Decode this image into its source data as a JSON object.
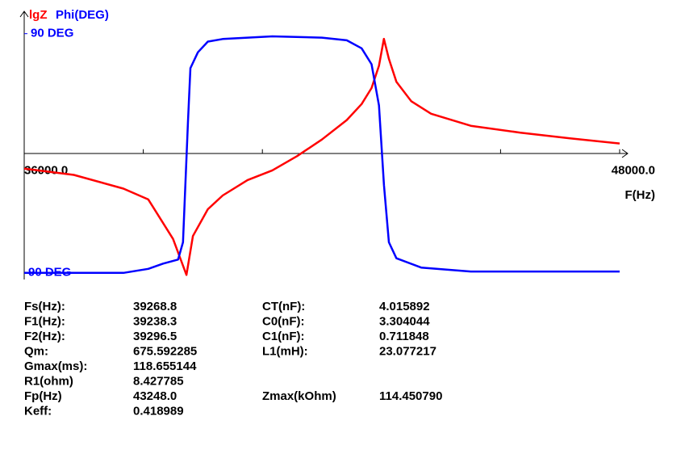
{
  "chart_data": {
    "type": "line",
    "x_label": "F(Hz)",
    "xlim": [
      36000,
      48000
    ],
    "xticks": [
      {
        "value": 36000,
        "label": "36000.0"
      },
      {
        "value": 38400,
        "label": null
      },
      {
        "value": 40800,
        "label": null
      },
      {
        "value": 43200,
        "label": null
      },
      {
        "value": 45600,
        "label": null
      },
      {
        "value": 48000,
        "label": "48000.0"
      }
    ],
    "ylim": [
      -95,
      105
    ],
    "yticks": [
      {
        "value": 90,
        "label": "90 DEG"
      },
      {
        "value": -90,
        "label": "-90 DEG"
      }
    ],
    "y2lim": [
      0.85,
      5.5
    ],
    "grid": false,
    "series": [
      {
        "name": "lgZ",
        "color": "#ff0000",
        "axis": "y2",
        "x": [
          36000,
          37000,
          38000,
          38500,
          39000,
          39150,
          39270,
          39400,
          39700,
          40000,
          40500,
          41000,
          41500,
          42000,
          42500,
          42800,
          43000,
          43150,
          43248,
          43350,
          43500,
          43800,
          44200,
          45000,
          46000,
          47000,
          48000
        ],
        "values": [
          2.79,
          2.68,
          2.44,
          2.25,
          1.56,
          1.21,
          0.93,
          1.61,
          2.08,
          2.32,
          2.59,
          2.76,
          3.01,
          3.3,
          3.64,
          3.92,
          4.2,
          4.59,
          5.06,
          4.71,
          4.31,
          3.97,
          3.75,
          3.54,
          3.42,
          3.32,
          3.23
        ]
      },
      {
        "name": "Phi(DEG)",
        "color": "#0000ff",
        "x": [
          36000,
          38000,
          38500,
          38800,
          39100,
          39200,
          39300,
          39350,
          39500,
          39700,
          40000,
          41000,
          42000,
          42500,
          42800,
          43000,
          43150,
          43250,
          43350,
          43500,
          44000,
          45000,
          48000
        ],
        "values": [
          -90,
          -90,
          -87,
          -83,
          -80,
          -67,
          24,
          64,
          76,
          84,
          86,
          88,
          87,
          85,
          79,
          67,
          36,
          -24,
          -67,
          -79,
          -86,
          -89,
          -89
        ]
      }
    ]
  },
  "table": {
    "rows": [
      [
        "Fs(Hz):",
        "39268.8",
        "CT(nF):",
        "4.015892"
      ],
      [
        "F1(Hz):",
        "39238.3",
        "C0(nF):",
        "3.304044"
      ],
      [
        "F2(Hz):",
        "39296.5",
        "C1(nF):",
        "0.711848"
      ],
      [
        "Qm:",
        "675.592285",
        "L1(mH):",
        "23.077217"
      ],
      [
        "Gmax(ms):",
        "118.655144"
      ],
      [
        "R1(ohm)",
        "8.427785"
      ],
      [
        "Fp(Hz)",
        "43248.0",
        "Zmax(kOhm)",
        "114.450790"
      ],
      [
        "Keff:",
        "0.418989"
      ]
    ]
  }
}
